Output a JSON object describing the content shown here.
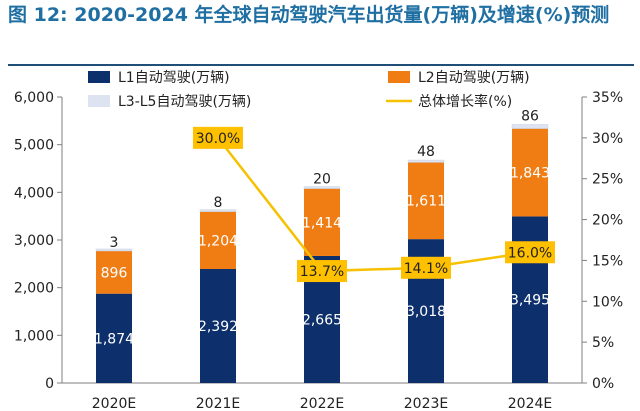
{
  "header": {
    "title": "图 12: 2020-2024 年全球自动驾驶汽车出货量(万辆)及增速(%)预测"
  },
  "chart_data": {
    "type": "bar",
    "stacked": true,
    "categories": [
      "2020E",
      "2021E",
      "2022E",
      "2023E",
      "2024E"
    ],
    "series": [
      {
        "name": "L1自动驾驶(万辆)",
        "values": [
          1874,
          2392,
          2665,
          3018,
          3495
        ],
        "labels": [
          "1,874",
          "2,392",
          "2,665",
          "3,018",
          "3,495"
        ],
        "color": "#0d2f6b",
        "label_color": "#ffffff"
      },
      {
        "name": "L2自动驾驶(万辆)",
        "values": [
          896,
          1204,
          1414,
          1611,
          1843
        ],
        "labels": [
          "896",
          "1,204",
          "1,414",
          "1,611",
          "1,843"
        ],
        "color": "#f07c14",
        "label_color": "#ffffff"
      },
      {
        "name": "L3-L5自动驾驶(万辆)",
        "values": [
          3,
          8,
          20,
          48,
          86
        ],
        "labels": [
          "3",
          "8",
          "20",
          "48",
          "86"
        ],
        "color": "#dde3f0",
        "label_color": "#222222"
      }
    ],
    "line": {
      "name": "总体增长率(%)",
      "values": [
        null,
        30.0,
        13.7,
        14.1,
        16.0
      ],
      "labels": [
        "",
        "30.0%",
        "13.7%",
        "14.1%",
        "16.0%"
      ],
      "color": "#f5c100",
      "label_bg": "#ffc000"
    },
    "ylim": [
      0,
      6000
    ],
    "yticks": [
      0,
      1000,
      2000,
      3000,
      4000,
      5000,
      6000
    ],
    "ytick_labels": [
      "0",
      "1,000",
      "2,000",
      "3,000",
      "4,000",
      "5,000",
      "6,000"
    ],
    "y2lim": [
      0,
      35
    ],
    "y2ticks": [
      0,
      5,
      10,
      15,
      20,
      25,
      30,
      35
    ],
    "y2tick_labels": [
      "0%",
      "5%",
      "10%",
      "15%",
      "20%",
      "25%",
      "30%",
      "35%"
    ],
    "legend_position": "top",
    "grid": false
  }
}
